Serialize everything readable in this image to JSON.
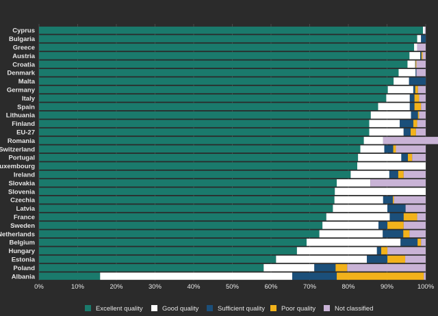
{
  "chart_data": {
    "type": "bar",
    "orientation": "horizontal",
    "stacked": true,
    "title": "",
    "xlabel": "",
    "ylabel": "",
    "xlim": [
      0,
      100
    ],
    "x_ticks": [
      "0%",
      "10%",
      "20%",
      "30%",
      "40%",
      "50%",
      "60%",
      "70%",
      "80%",
      "90%",
      "100%"
    ],
    "grid": true,
    "legend_position": "bottom",
    "categories": [
      "Cyprus",
      "Bulgaria",
      "Greece",
      "Austria",
      "Croatia",
      "Denmark",
      "Malta",
      "Germany",
      "Italy",
      "Spain",
      "Lithuania",
      "Finland",
      "EU-27",
      "Romania",
      "Switzerland",
      "Portugal",
      "Luxembourg",
      "Ireland",
      "Slovakia",
      "Slovenia",
      "Czechia",
      "Latvia",
      "France",
      "Sweden",
      "Netherlands",
      "Belgium",
      "Hungary",
      "Estonia",
      "Poland",
      "Albania"
    ],
    "series": [
      {
        "name": "Excellent quality",
        "color": "#1a7a6c",
        "values": [
          99.3,
          97.8,
          97.0,
          95.8,
          95.3,
          93.0,
          91.7,
          90.2,
          89.8,
          87.7,
          85.8,
          85.4,
          85.4,
          84.0,
          83.1,
          82.5,
          82.3,
          80.6,
          77.0,
          76.5,
          76.4,
          76.0,
          74.3,
          73.3,
          72.5,
          69.2,
          66.7,
          61.3,
          58.1,
          15.8
        ]
      },
      {
        "name": "Good quality",
        "color": "#ffffff",
        "values": [
          0.5,
          1.0,
          0.8,
          2.8,
          2.0,
          4.4,
          4.0,
          6.6,
          6.1,
          8.2,
          10.4,
          7.9,
          8.9,
          5.0,
          6.2,
          11.2,
          17.7,
          10.0,
          8.7,
          23.5,
          12.6,
          14.1,
          16.4,
          14.5,
          16.4,
          24.3,
          20.7,
          23.5,
          13.1,
          49.7
        ]
      },
      {
        "name": "Sufficient quality",
        "color": "#1b4f7a",
        "values": [
          0.0,
          1.2,
          0.0,
          0.3,
          0.1,
          0.2,
          4.3,
          0.5,
          1.2,
          1.2,
          1.8,
          3.5,
          1.8,
          0.0,
          2.3,
          1.7,
          0.0,
          2.3,
          0.0,
          0.0,
          2.5,
          4.7,
          3.6,
          2.3,
          5.3,
          4.4,
          1.1,
          5.3,
          5.5,
          11.5
        ]
      },
      {
        "name": "Poor quality",
        "color": "#f2b21b",
        "values": [
          0.0,
          0.0,
          0.0,
          0.3,
          0.2,
          0.0,
          0.0,
          0.7,
          1.2,
          1.7,
          0.3,
          1.0,
          1.4,
          0.0,
          0.7,
          1.1,
          0.0,
          1.4,
          0.0,
          0.0,
          0.3,
          0.0,
          3.5,
          4.2,
          1.6,
          0.9,
          1.6,
          4.6,
          3.0,
          22.5
        ]
      },
      {
        "name": "Not classified",
        "color": "#c9b3d6",
        "values": [
          0.2,
          0.0,
          2.2,
          0.8,
          2.4,
          2.4,
          0.0,
          2.0,
          1.7,
          1.2,
          1.7,
          2.2,
          2.5,
          16.0,
          7.7,
          3.5,
          0.0,
          5.7,
          14.3,
          0.0,
          8.2,
          5.2,
          2.2,
          5.7,
          4.2,
          1.2,
          9.9,
          5.3,
          20.3,
          0.5
        ]
      }
    ]
  }
}
